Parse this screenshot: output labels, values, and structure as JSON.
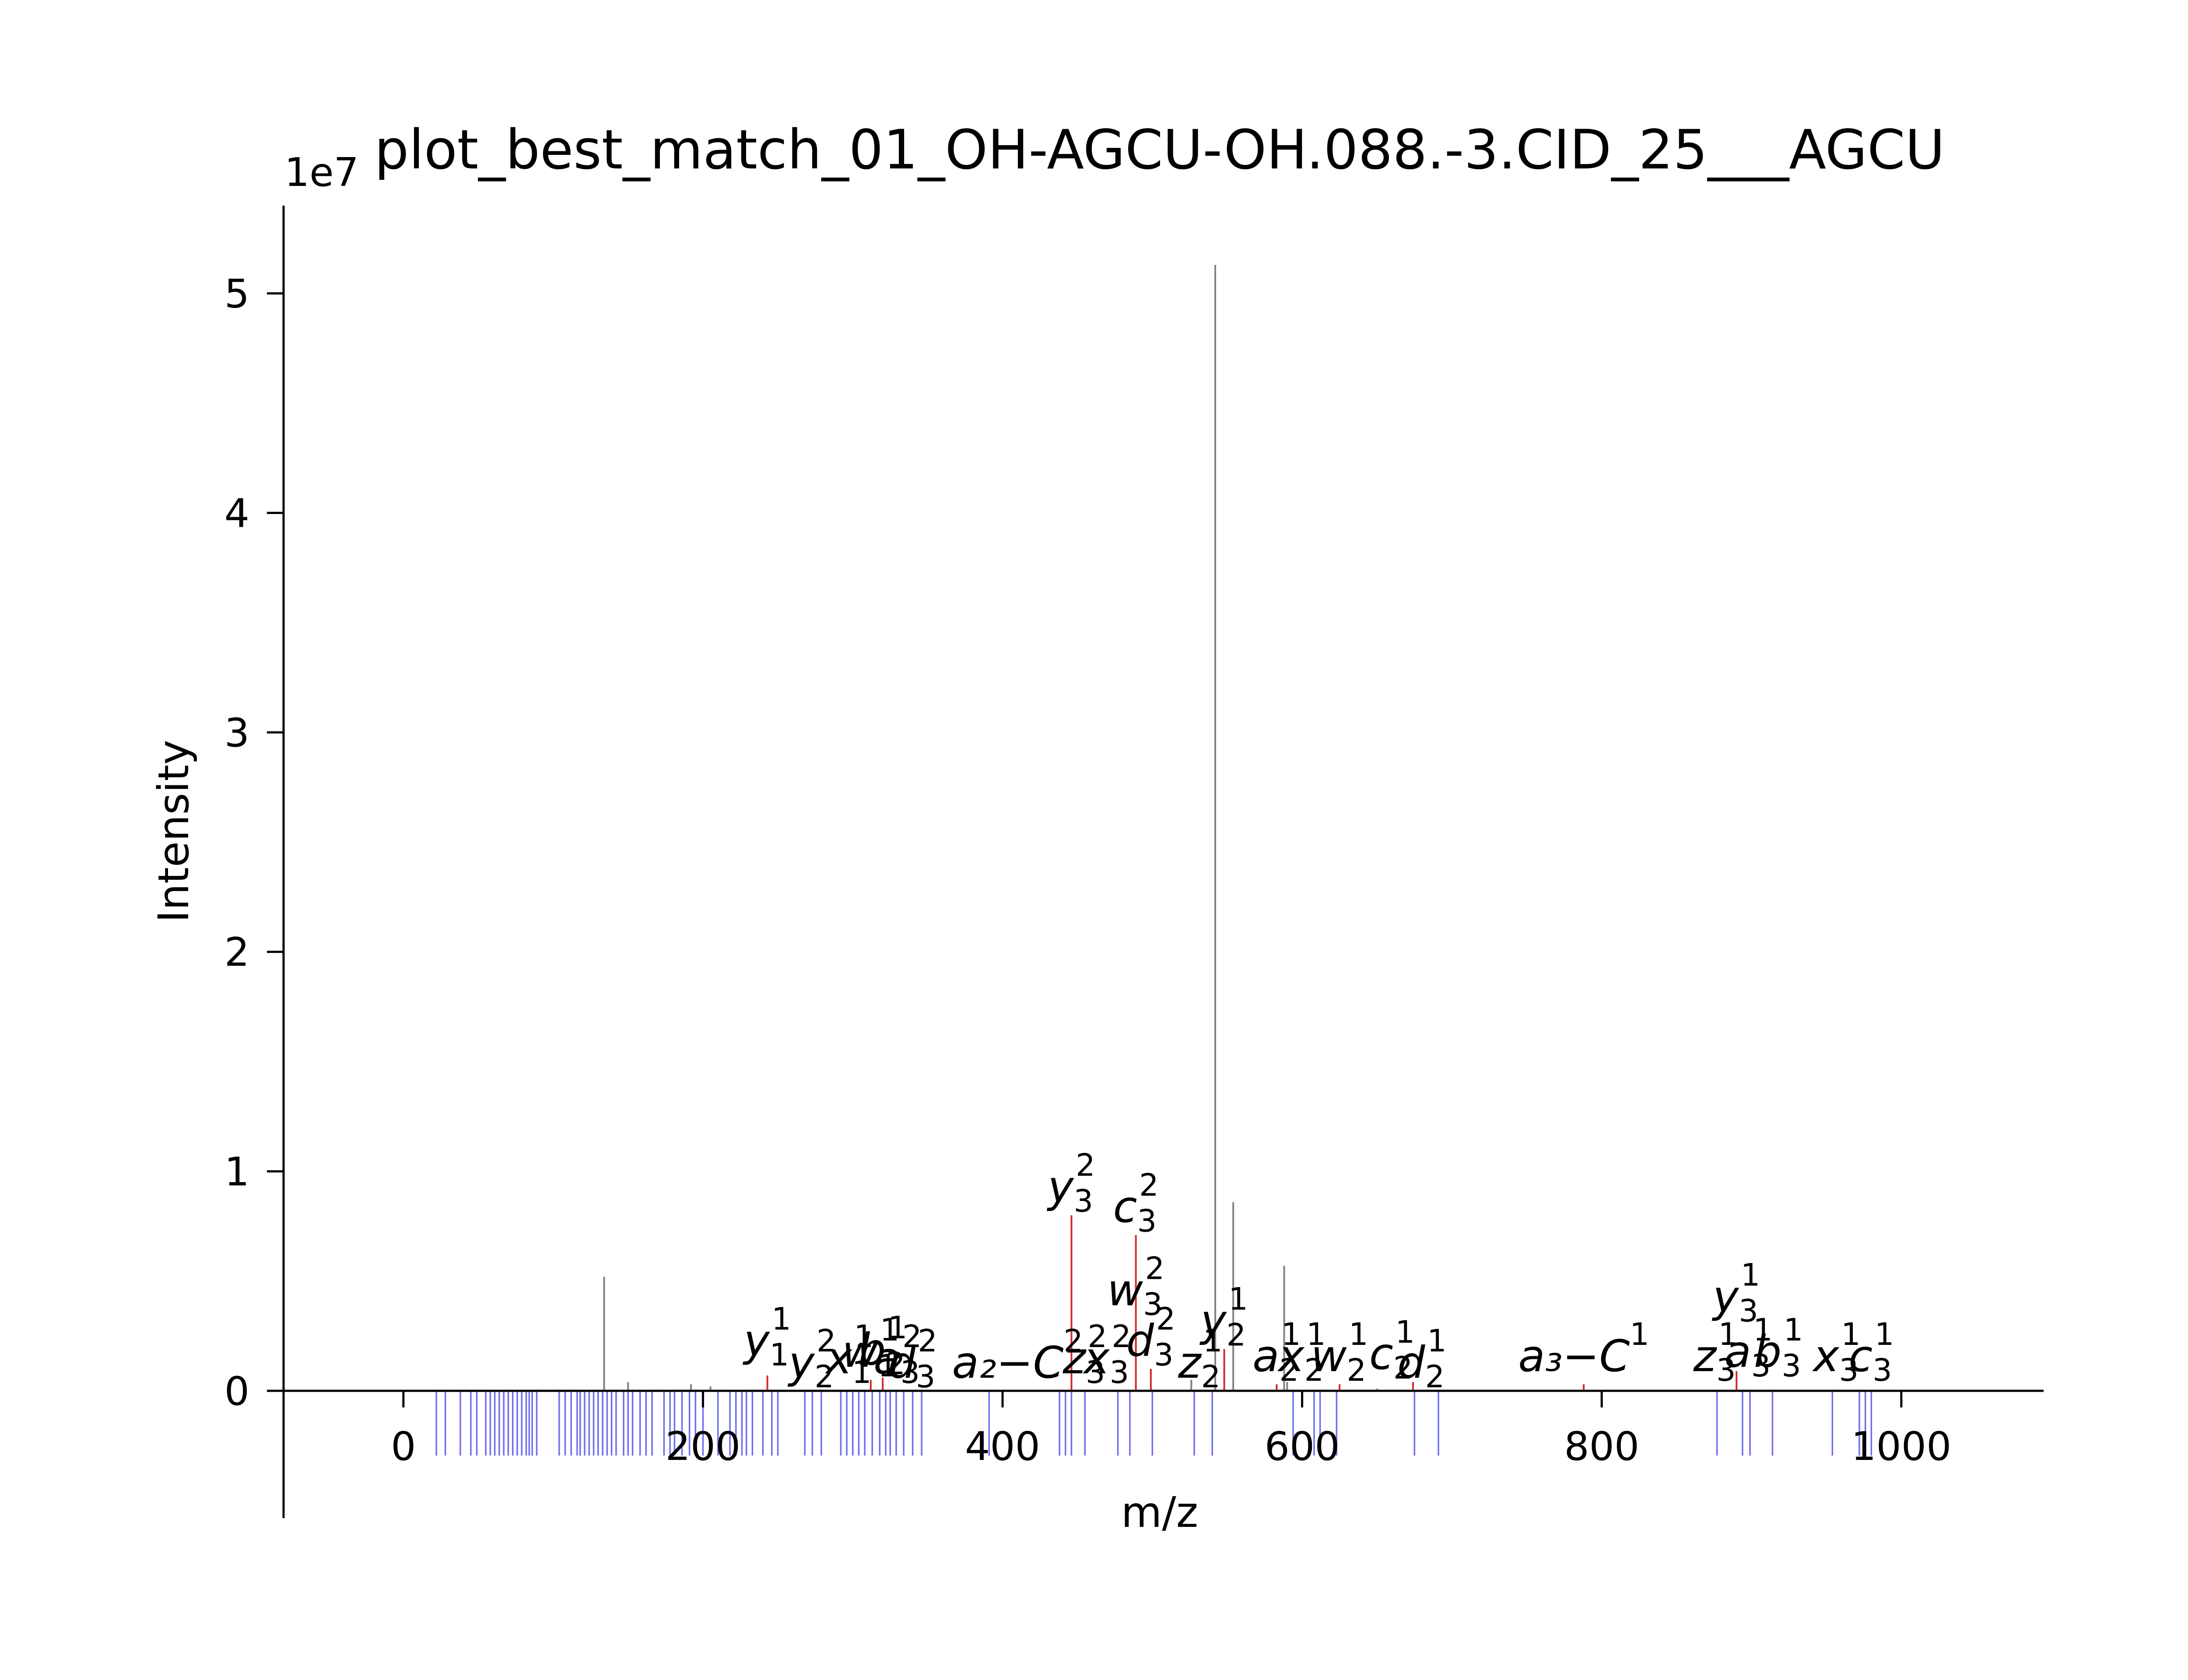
{
  "chart_data": {
    "type": "bar",
    "title": "plot_best_match_01_OH-AGCU-OH.088.-3.CID_25___AGCU",
    "xlabel": "m/z",
    "ylabel": "Intensity",
    "y_multiplier_label": "1e7",
    "xlim": [
      -80,
      1095
    ],
    "ylim": [
      -0.58,
      5.4
    ],
    "x_ticks": [
      0,
      200,
      400,
      600,
      800,
      1000
    ],
    "y_ticks": [
      0,
      1,
      2,
      3,
      4,
      5
    ],
    "grid": false,
    "legend": "none",
    "colors": {
      "unmatched": "#808080",
      "matched": "#d62728",
      "theoretical": "#5555ee",
      "axis": "#000000"
    },
    "series": [
      {
        "role": "observed unmatched peaks",
        "points": [
          {
            "x": 134,
            "y": 0.52
          },
          {
            "x": 150,
            "y": 0.04
          },
          {
            "x": 192,
            "y": 0.03
          },
          {
            "x": 205,
            "y": 0.02
          },
          {
            "x": 526,
            "y": 0.05
          },
          {
            "x": 542,
            "y": 5.13
          },
          {
            "x": 554,
            "y": 0.86
          },
          {
            "x": 588,
            "y": 0.57
          },
          {
            "x": 590,
            "y": 0.04
          },
          {
            "x": 650,
            "y": 0.01
          }
        ]
      },
      {
        "role": "observed matched peaks",
        "points": [
          {
            "x": 243,
            "y": 0.07
          },
          {
            "x": 312,
            "y": 0.05
          },
          {
            "x": 320,
            "y": 0.06
          },
          {
            "x": 446,
            "y": 0.8
          },
          {
            "x": 489,
            "y": 0.71
          },
          {
            "x": 499,
            "y": 0.1
          },
          {
            "x": 548,
            "y": 0.19
          },
          {
            "x": 583,
            "y": 0.03
          },
          {
            "x": 625,
            "y": 0.03
          },
          {
            "x": 674,
            "y": 0.04
          },
          {
            "x": 788,
            "y": 0.03
          },
          {
            "x": 890,
            "y": 0.09
          }
        ]
      },
      {
        "role": "theoretical fragment positions",
        "x": [
          22,
          28,
          38,
          45,
          49,
          55,
          58,
          61,
          64,
          67,
          70,
          73,
          76,
          79,
          82,
          84,
          86,
          89,
          104,
          108,
          112,
          116,
          118,
          121,
          124,
          127,
          130,
          133,
          136,
          139,
          142,
          147,
          150,
          153,
          158,
          162,
          166,
          174,
          178,
          181,
          186,
          191,
          195,
          200,
          210,
          218,
          222,
          226,
          229,
          233,
          240,
          246,
          250,
          268,
          273,
          279,
          292,
          296,
          300,
          304,
          308,
          313,
          318,
          322,
          325,
          329,
          334,
          340,
          346,
          391,
          438,
          442,
          446,
          455,
          477,
          485,
          500,
          528,
          540,
          594,
          608,
          612,
          623,
          675,
          691,
          877,
          894,
          899,
          914,
          954,
          972,
          976,
          980
        ]
      }
    ],
    "annotations": [
      {
        "x": 243,
        "y": 0.1,
        "ion": "y",
        "sub": "1",
        "sup": "1"
      },
      {
        "x": 273,
        "y": 0.0,
        "ion": "y",
        "sub": "2",
        "sup": "2"
      },
      {
        "x": 298,
        "y": 0.02,
        "ion": "x",
        "sub": "1",
        "sup": "1"
      },
      {
        "x": 312,
        "y": 0.05,
        "ion": "w",
        "sub": "1",
        "sup": "1"
      },
      {
        "x": 320,
        "y": 0.06,
        "ion": "b",
        "sub": "2",
        "sup": "1"
      },
      {
        "x": 330,
        "y": 0.02,
        "ion": "a",
        "sub": "3",
        "sup": "2"
      },
      {
        "x": 340,
        "y": 0.0,
        "ion": "d",
        "sub": "3",
        "sup": "2"
      },
      {
        "x": 410,
        "y": 0.0,
        "ion": "a₂−C",
        "sub": "",
        "sup": "2"
      },
      {
        "x": 446,
        "y": 0.8,
        "ion": "y",
        "sub": "3",
        "sup": "2"
      },
      {
        "x": 455,
        "y": 0.02,
        "ion": "z",
        "sub": "3",
        "sup": "2"
      },
      {
        "x": 470,
        "y": 0.02,
        "ion": "x",
        "sub": "3",
        "sup": "2"
      },
      {
        "x": 489,
        "y": 0.71,
        "ion": "c",
        "sub": "3",
        "sup": "2"
      },
      {
        "x": 489,
        "y": 0.33,
        "ion": "w",
        "sub": "3",
        "sup": "2"
      },
      {
        "x": 499,
        "y": 0.1,
        "ion": "d",
        "sub": "3",
        "sup": "2"
      },
      {
        "x": 532,
        "y": 0.0,
        "ion": "z",
        "sub": "2",
        "sup": "1"
      },
      {
        "x": 548,
        "y": 0.19,
        "ion": "y",
        "sub": "2",
        "sup": "1"
      },
      {
        "x": 583,
        "y": 0.03,
        "ion": "a",
        "sub": "2",
        "sup": "1"
      },
      {
        "x": 600,
        "y": 0.03,
        "ion": "x",
        "sub": "2",
        "sup": "1"
      },
      {
        "x": 625,
        "y": 0.03,
        "ion": "w",
        "sub": "2",
        "sup": "1"
      },
      {
        "x": 660,
        "y": 0.04,
        "ion": "c",
        "sub": "2",
        "sup": "1"
      },
      {
        "x": 680,
        "y": 0.0,
        "ion": "d",
        "sub": "2",
        "sup": "1"
      },
      {
        "x": 788,
        "y": 0.03,
        "ion": "a₃−C",
        "sub": "",
        "sup": "1"
      },
      {
        "x": 876,
        "y": 0.03,
        "ion": "z",
        "sub": "3",
        "sup": "1"
      },
      {
        "x": 890,
        "y": 0.3,
        "ion": "y",
        "sub": "3",
        "sup": "1"
      },
      {
        "x": 898,
        "y": 0.05,
        "ion": "a",
        "sub": "3",
        "sup": "1"
      },
      {
        "x": 918,
        "y": 0.05,
        "ion": "b",
        "sub": "3",
        "sup": "1"
      },
      {
        "x": 957,
        "y": 0.03,
        "ion": "x",
        "sub": "3",
        "sup": "1"
      },
      {
        "x": 980,
        "y": 0.03,
        "ion": "c",
        "sub": "3",
        "sup": "1"
      }
    ]
  }
}
